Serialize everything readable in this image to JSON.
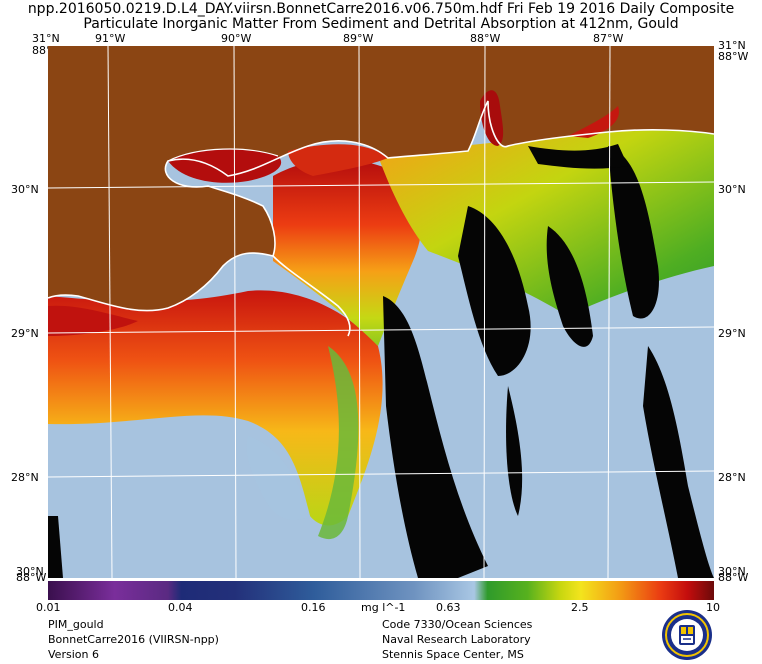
{
  "header": {
    "title_line1": "npp.2016050.0219.D.L4_DAY.viirsn.BonnetCarre2016.v06.750m.hdf       Fri Feb 19 2016 Daily Composite",
    "title_line2": "Particulate Inorganic Matter From Sediment and Detrital Absorption at 412nm, Gould"
  },
  "map": {
    "lon_labels": [
      "91°W",
      "90°W",
      "89°W",
      "88°W",
      "87°W"
    ],
    "lat_labels": [
      "30°N",
      "29°N",
      "28°N"
    ],
    "corner_labels": {
      "top_left_lat": "31°N",
      "top_left_lon": "88°W",
      "top_right_lat": "31°N",
      "top_right_lon": "88°W",
      "bottom_left_lat": "30°N",
      "bottom_left_lon": "88°W",
      "bottom_right_lat": "30°N",
      "bottom_right_lon": "88°W"
    },
    "colors": {
      "land": "#8b4513",
      "water_clear": "#a7c3df",
      "no_data": "#000000",
      "coast": "#ffffff",
      "grid": "#ffffff"
    }
  },
  "colorbar": {
    "ticks": [
      "0.01",
      "0.04",
      "0.16",
      "0.63",
      "2.5",
      "10"
    ],
    "unit": "mg l^-1"
  },
  "footer": {
    "left": [
      "PIM_gould",
      "BonnetCarre2016 (VIIRSN-npp)",
      "Version 6"
    ],
    "right": [
      "Code 7330/Ocean Sciences",
      "Naval Research Laboratory",
      "Stennis Space Center, MS"
    ]
  },
  "logo_icon": "nrl-seal-icon"
}
